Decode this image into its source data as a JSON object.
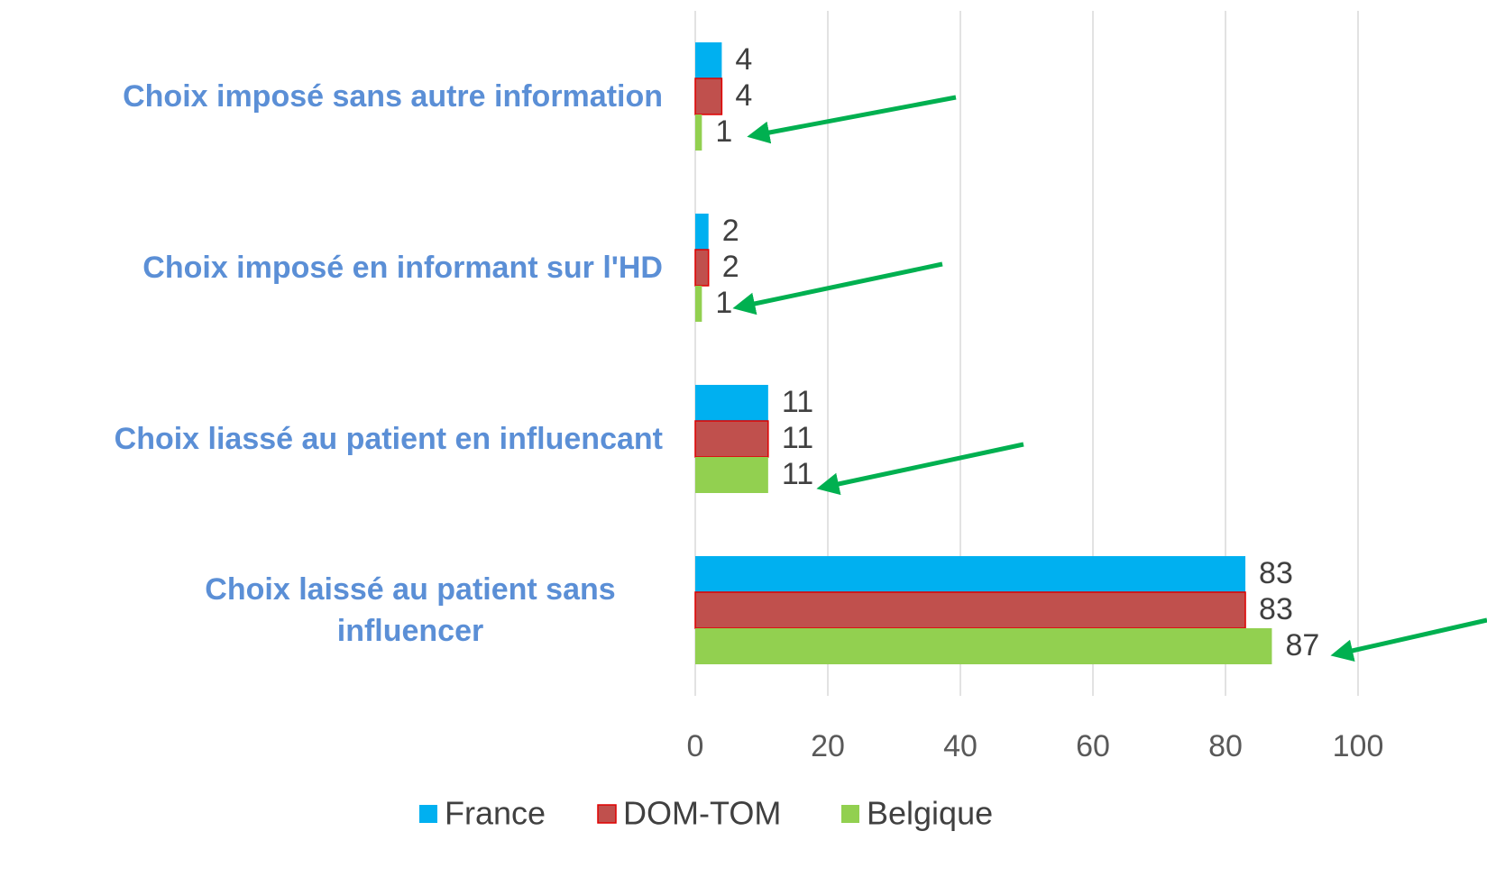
{
  "chart_data": {
    "type": "bar",
    "orientation": "horizontal",
    "categories": [
      "Choix imposé sans autre information",
      "Choix imposé en informant sur l'HD",
      "Choix liassé au patient en influencant",
      "Choix laissé au patient sans influencer"
    ],
    "series": [
      {
        "name": "France",
        "color": "#00b0f0",
        "values": [
          4,
          2,
          11,
          83
        ]
      },
      {
        "name": "DOM-TOM",
        "color": "#c0504d",
        "values": [
          4,
          2,
          11,
          83
        ]
      },
      {
        "name": "Belgique",
        "color": "#92d050",
        "values": [
          1,
          1,
          11,
          87
        ]
      }
    ],
    "xlim": [
      0,
      100
    ],
    "xticks": [
      0,
      20,
      40,
      60,
      80,
      100
    ],
    "grid": true,
    "legend": "bottom"
  }
}
